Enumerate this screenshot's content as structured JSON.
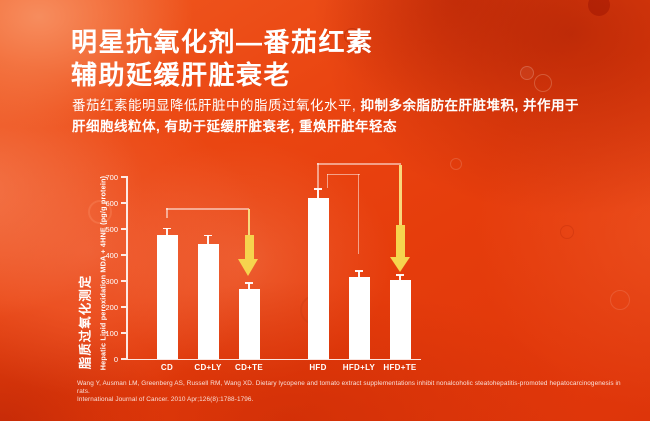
{
  "title": {
    "line1": "明星抗氧化剂—番茄红素",
    "line2": "辅助延缓肝脏衰老"
  },
  "intro": {
    "normal": "番茄红素能明显降低肝脏中的脂质过氧化水平, ",
    "bold_line1": "抑制多余脂肪在肝脏堆积, 并作用于",
    "bold_line2": "肝细胞线粒体, 有助于延缓肝脏衰老, 重焕肝脏年轻态"
  },
  "chart_data": {
    "type": "bar",
    "categories": [
      "CD",
      "CD+LY",
      "CD+TE",
      "HFD",
      "HFD+LY",
      "HFD+TE"
    ],
    "values": [
      478,
      443,
      268,
      620,
      314,
      304
    ],
    "errors": [
      25,
      33,
      25,
      35,
      26,
      20
    ],
    "title": "",
    "xlabel": "",
    "ylabel": "Hepatic Lipid peroxidation MDA + 4HNE (pg/g protein)",
    "ylabel_cn": "脂质过氧化测定",
    "ylim": [
      0,
      700
    ],
    "y_ticks": [
      0,
      100,
      200,
      300,
      400,
      500,
      600,
      700
    ],
    "grid": false,
    "legend": false,
    "bar_color": "#FFFFFF",
    "annotations": [
      {
        "type": "down-arrow",
        "target": "CD+TE",
        "color": "#F6D44E"
      },
      {
        "type": "down-arrow",
        "target": "HFD+TE",
        "color": "#F6D44E"
      },
      {
        "type": "bracket",
        "from": "CD",
        "to": "CD+TE"
      },
      {
        "type": "bracket",
        "from": "HFD",
        "to": "HFD+LY"
      },
      {
        "type": "bracket",
        "from": "HFD",
        "to": "HFD+TE"
      }
    ]
  },
  "citation": {
    "line1": "Wang Y, Ausman LM, Greenberg AS, Russell RM, Wang XD. Dietary lycopene and tomato extract supplementations inhibit nonalcoholic steatohepatitis-promoted hepatocarcinogenesis in rats.",
    "line2": "International Journal of Cancer. 2010 Apr;126(8):1788-1796."
  },
  "colors": {
    "background_base": "#E8430F",
    "bar": "#FFFFFF",
    "arrow": "#F6D44E",
    "text": "#FFFFFF"
  }
}
